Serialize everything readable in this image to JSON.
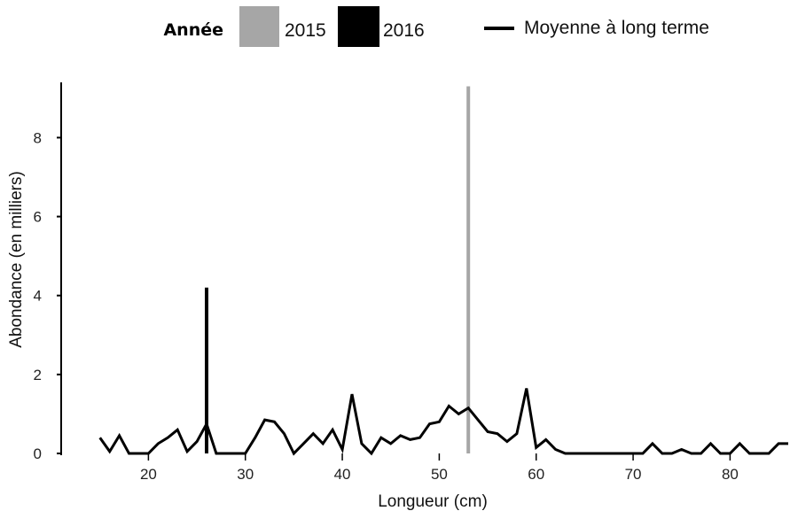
{
  "chart_data": {
    "type": "line",
    "xlabel": "Longueur (cm)",
    "ylabel": "Abondance (en milliers)",
    "xlim": [
      11,
      86
    ],
    "ylim": [
      0,
      9.4
    ],
    "xticks": [
      20,
      30,
      40,
      50,
      60,
      70,
      80
    ],
    "yticks": [
      0,
      2,
      4,
      6,
      8
    ],
    "legend": {
      "title": "Année",
      "position": "top",
      "entries": [
        {
          "label": "2015",
          "color": "#a6a6a6",
          "swatch": "box"
        },
        {
          "label": "2016",
          "color": "#000000",
          "swatch": "box"
        },
        {
          "label": "Moyenne à long terme",
          "color": "#000000",
          "swatch": "line"
        }
      ]
    },
    "bars": [
      {
        "series": "2015",
        "x": 53,
        "y": 9.3,
        "color": "#a6a6a6"
      },
      {
        "series": "2016",
        "x": 26,
        "y": 4.2,
        "color": "#000000"
      }
    ],
    "series": [
      {
        "name": "Moyenne à long terme",
        "color": "#000000",
        "x": [
          15,
          16,
          17,
          18,
          19,
          20,
          21,
          22,
          23,
          24,
          25,
          26,
          27,
          28,
          29,
          30,
          31,
          32,
          33,
          34,
          35,
          36,
          37,
          38,
          39,
          40,
          41,
          42,
          43,
          44,
          45,
          46,
          47,
          48,
          49,
          50,
          51,
          52,
          53,
          54,
          55,
          56,
          57,
          58,
          59,
          60,
          61,
          62,
          63,
          64,
          65,
          66,
          67,
          68,
          69,
          70,
          71,
          72,
          73,
          74,
          75,
          76,
          77,
          78,
          79,
          80,
          81,
          82,
          83,
          84,
          85,
          86
        ],
        "y": [
          0.4,
          0.05,
          0.45,
          0.0,
          0.0,
          0.0,
          0.25,
          0.4,
          0.6,
          0.05,
          0.3,
          0.75,
          0.0,
          0.0,
          0.0,
          0.0,
          0.4,
          0.85,
          0.8,
          0.5,
          0.0,
          0.25,
          0.5,
          0.25,
          0.6,
          0.1,
          1.5,
          0.25,
          0.0,
          0.4,
          0.25,
          0.45,
          0.35,
          0.4,
          0.75,
          0.8,
          1.2,
          1.0,
          1.15,
          0.85,
          0.55,
          0.5,
          0.3,
          0.5,
          1.65,
          0.15,
          0.35,
          0.1,
          0.0,
          0.0,
          0.0,
          0.0,
          0.0,
          0.0,
          0.0,
          0.0,
          0.0,
          0.25,
          0.0,
          0.0,
          0.1,
          0.0,
          0.0,
          0.25,
          0.0,
          0.0,
          0.25,
          0.0,
          0.0,
          0.0,
          0.25,
          0.25
        ]
      }
    ]
  }
}
